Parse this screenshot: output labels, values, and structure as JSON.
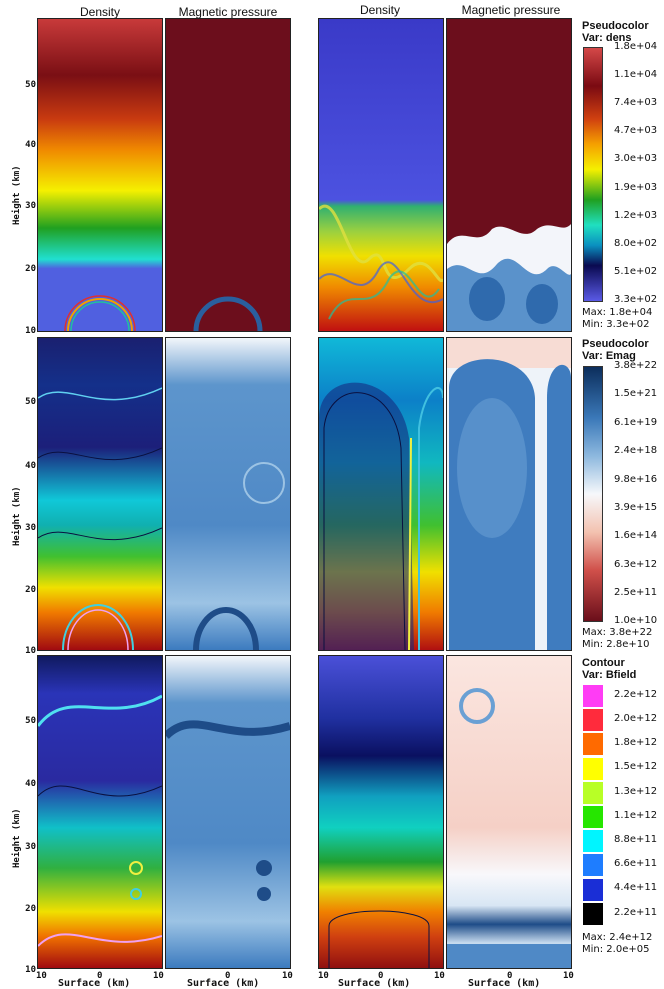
{
  "column_titles": [
    "Density",
    "Magnetic pressure",
    "Density",
    "Magnetic pressure"
  ],
  "y_axis_label": "Height (km)",
  "y_ticks": [
    "50",
    "40",
    "30",
    "20",
    "10"
  ],
  "x_axis_label": "Surface (km)",
  "x_ticks": [
    "10",
    "0",
    "10",
    "0",
    "10",
    "0",
    "10"
  ],
  "legends": [
    {
      "title": "Pseudocolor",
      "var": "Var: dens",
      "labels": [
        "1.8e+04",
        "1.1e+04",
        "7.4e+03",
        "4.7e+03",
        "3.0e+03",
        "1.9e+03",
        "1.2e+03",
        "8.0e+02",
        "5.1e+02",
        "3.3e+02"
      ],
      "max": "Max: 1.8e+04",
      "min": "Min: 3.3e+02"
    },
    {
      "title": "Pseudocolor",
      "var": "Var: Emag",
      "labels": [
        "3.8e+22",
        "1.5e+21",
        "6.1e+19",
        "2.4e+18",
        "9.8e+16",
        "3.9e+15",
        "1.6e+14",
        "6.3e+12",
        "2.5e+11",
        "1.0e+10"
      ],
      "max": "Max: 3.8e+22",
      "min": "Min: 2.8e+10"
    },
    {
      "title": "Contour",
      "var": "Var: Bfield",
      "labels": [
        "2.2e+12",
        "2.0e+12",
        "1.8e+12",
        "1.5e+12",
        "1.3e+12",
        "1.1e+12",
        "8.8e+11",
        "6.6e+11",
        "4.4e+11",
        "2.2e+11"
      ],
      "swatch_colors": [
        "#ff3cf5",
        "#ff2b3c",
        "#ff6a00",
        "#ffff00",
        "#b8ff26",
        "#26e600",
        "#00f5ff",
        "#1e7dff",
        "#1a2ed6",
        "#000000"
      ],
      "max": "Max: 2.4e+12",
      "min": "Min: 2.0e+05"
    }
  ]
}
